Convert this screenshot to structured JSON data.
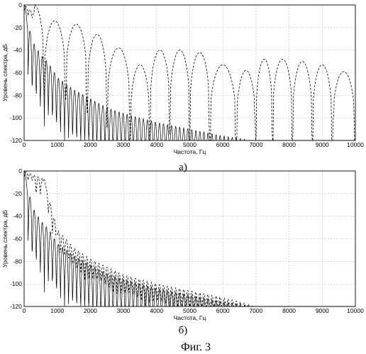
{
  "caption": "Фиг. 3",
  "chart_data": [
    {
      "type": "line",
      "panel_label": "а)",
      "xlabel": "Частота, Гц",
      "ylabel": "Уровень спектра, дБ",
      "xlim": [
        0,
        10000
      ],
      "ylim": [
        -120,
        0
      ],
      "xticks": [
        0,
        1000,
        2000,
        3000,
        4000,
        5000,
        6000,
        7000,
        8000,
        9000,
        10000
      ],
      "yticks": [
        0,
        -20,
        -40,
        -60,
        -80,
        -100,
        -120
      ],
      "grid": true,
      "series": [
        {
          "style": "solid",
          "peaks": [
            [
              0,
              0
            ],
            [
              250,
              -32
            ],
            [
              500,
              -44
            ],
            [
              750,
              -52
            ],
            [
              1000,
              -64
            ],
            [
              1500,
              -75
            ],
            [
              2000,
              -83
            ],
            [
              2500,
              -91
            ],
            [
              3000,
              -96
            ],
            [
              3500,
              -100
            ],
            [
              4000,
              -104
            ],
            [
              4500,
              -107
            ],
            [
              5000,
              -110
            ],
            [
              5500,
              -113
            ],
            [
              6000,
              -116
            ],
            [
              6500,
              -118
            ],
            [
              6800,
              -120
            ]
          ]
        },
        {
          "style": "dashed",
          "peaks": [
            [
              0,
              0
            ],
            [
              600,
              -14
            ],
            [
              1250,
              -17
            ],
            [
              1900,
              -26
            ],
            [
              2500,
              -38
            ],
            [
              3200,
              -63
            ],
            [
              3800,
              -53
            ],
            [
              4400,
              -40
            ],
            [
              5000,
              -42
            ],
            [
              5600,
              -53
            ],
            [
              6400,
              -63
            ],
            [
              7000,
              -58
            ],
            [
              7500,
              -48
            ],
            [
              8100,
              -50
            ],
            [
              8700,
              -53
            ],
            [
              9300,
              -71
            ],
            [
              10000,
              -59
            ]
          ]
        }
      ]
    },
    {
      "type": "line",
      "panel_label": "б)",
      "xlabel": "Частота, Гц",
      "ylabel": "Уровень спектра, дБ",
      "xlim": [
        0,
        10000
      ],
      "ylim": [
        -120,
        0
      ],
      "xticks": [
        0,
        1000,
        2000,
        3000,
        4000,
        5000,
        6000,
        7000,
        8000,
        9000,
        10000
      ],
      "yticks": [
        0,
        -20,
        -40,
        -60,
        -80,
        -100,
        -120
      ],
      "grid": true,
      "series": [
        {
          "style": "solid",
          "peaks": [
            [
              0,
              0
            ],
            [
              250,
              -32
            ],
            [
              500,
              -44
            ],
            [
              750,
              -52
            ],
            [
              1000,
              -64
            ],
            [
              1500,
              -75
            ],
            [
              2000,
              -83
            ],
            [
              2500,
              -91
            ],
            [
              3000,
              -96
            ],
            [
              3500,
              -100
            ],
            [
              4000,
              -104
            ],
            [
              4500,
              -107
            ],
            [
              5000,
              -110
            ],
            [
              5500,
              -113
            ],
            [
              6000,
              -116
            ],
            [
              6500,
              -118
            ],
            [
              6800,
              -120
            ]
          ]
        },
        {
          "style": "dashed",
          "peaks": [
            [
              0,
              0
            ],
            [
              600,
              -7
            ],
            [
              1000,
              -52
            ],
            [
              1500,
              -68
            ],
            [
              2000,
              -78
            ],
            [
              3000,
              -92
            ],
            [
              4000,
              -100
            ],
            [
              5000,
              -106
            ],
            [
              6000,
              -112
            ],
            [
              6800,
              -118
            ],
            [
              7000,
              -120
            ]
          ]
        }
      ]
    }
  ]
}
